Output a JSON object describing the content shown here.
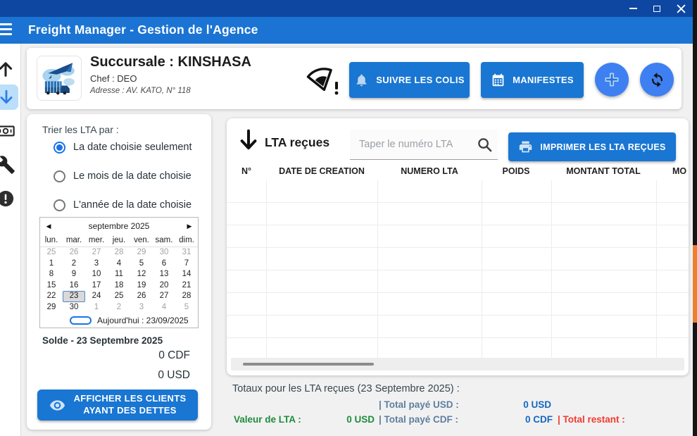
{
  "window": {
    "title_bar_color": "#0d47a1"
  },
  "app_header": {
    "title": "Freight Manager - Gestion de l'Agence"
  },
  "branch": {
    "name": "Succursale : KINSHASA",
    "chef": "Chef : DEO",
    "address": "Adresse : AV. KATO, N° 118"
  },
  "toolbar": {
    "suivre_label": "SUIVRE LES COLIS",
    "manifestes_label": "MANIFESTES"
  },
  "filter": {
    "title": "Trier les LTA par :",
    "options": [
      {
        "label": "La date choisie seulement",
        "selected": true
      },
      {
        "label": "Le mois de la date choisie",
        "selected": false
      },
      {
        "label": "L'année de la date choisie",
        "selected": false
      }
    ]
  },
  "calendar": {
    "month_label": "septembre 2025",
    "prev_icon": "◀",
    "next_icon": "▶",
    "day_names": [
      "lun.",
      "mar.",
      "mer.",
      "jeu.",
      "ven.",
      "sam.",
      "dim."
    ],
    "weeks": [
      [
        {
          "t": "25",
          "o": 1
        },
        {
          "t": "26",
          "o": 1
        },
        {
          "t": "27",
          "o": 1
        },
        {
          "t": "28",
          "o": 1
        },
        {
          "t": "29",
          "o": 1
        },
        {
          "t": "30",
          "o": 1
        },
        {
          "t": "31",
          "o": 1
        }
      ],
      [
        {
          "t": "1"
        },
        {
          "t": "2"
        },
        {
          "t": "3"
        },
        {
          "t": "4"
        },
        {
          "t": "5"
        },
        {
          "t": "6"
        },
        {
          "t": "7"
        }
      ],
      [
        {
          "t": "8"
        },
        {
          "t": "9"
        },
        {
          "t": "10"
        },
        {
          "t": "11"
        },
        {
          "t": "12"
        },
        {
          "t": "13"
        },
        {
          "t": "14"
        }
      ],
      [
        {
          "t": "15"
        },
        {
          "t": "16"
        },
        {
          "t": "17"
        },
        {
          "t": "18"
        },
        {
          "t": "19"
        },
        {
          "t": "20"
        },
        {
          "t": "21"
        }
      ],
      [
        {
          "t": "22"
        },
        {
          "t": "23",
          "sel": 1
        },
        {
          "t": "24"
        },
        {
          "t": "25"
        },
        {
          "t": "26"
        },
        {
          "t": "27"
        },
        {
          "t": "28"
        }
      ],
      [
        {
          "t": "29"
        },
        {
          "t": "30"
        },
        {
          "t": "1",
          "o": 1
        },
        {
          "t": "2",
          "o": 1
        },
        {
          "t": "3",
          "o": 1
        },
        {
          "t": "4",
          "o": 1
        },
        {
          "t": "5",
          "o": 1
        }
      ]
    ],
    "today_label": "Aujourd'hui : 23/09/2025",
    "selected_date": "23"
  },
  "balance": {
    "title": "Solde - 23 Septembre 2025",
    "cdf": "0 CDF",
    "usd": "0 USD",
    "debts_button_line1": "AFFICHER LES CLIENTS",
    "debts_button_line2": "AYANT DES DETTES"
  },
  "lta": {
    "title": "LTA reçues",
    "search_placeholder": "Taper le numéro LTA",
    "print_button": "IMPRIMER LES LTA REÇUES",
    "columns": [
      "N°",
      "DATE DE CREATION",
      "NUMERO LTA",
      "POIDS",
      "MONTANT TOTAL",
      "MO"
    ],
    "rows": []
  },
  "totals": {
    "heading": "Totaux pour les LTA reçues (23 Septembre 2025) :",
    "valeur_label": "Valeur de LTA :",
    "valeur_value": "0 USD",
    "paye_usd_label": "| Total payé USD :",
    "paye_usd_value": "0 USD",
    "paye_cdf_label": "| Total payé CDF :",
    "paye_cdf_value": "0 CDF",
    "restant_label": "| Total restant :"
  },
  "icons": {
    "menu": "hamburger",
    "minimize": "bar",
    "maximize": "square",
    "close": "cross",
    "wifi_alert": "wifi-warning",
    "bell": "bell",
    "calendar": "calendar-grid",
    "plus": "+",
    "sync": "circular-arrows",
    "eye": "eye",
    "printer": "printer",
    "search": "magnifier",
    "download_arrow": "↓",
    "upload_arrow": "↑",
    "money": "banknote",
    "tools": "wrench",
    "alert": "exclamation-circle"
  },
  "colors": {
    "titlebar": "#0d47a1",
    "appbar": "#1b74d3",
    "primary_button": "#1976d2",
    "round_button": "#3e80f1",
    "sidebar_selected_bg": "#bbdefb",
    "radio_selected": "#1a73e8",
    "value_blue": "#1667c0",
    "value_green": "#1e8c3a",
    "alert_red": "#f23b2f",
    "paye_label": "#5e7f9d"
  }
}
